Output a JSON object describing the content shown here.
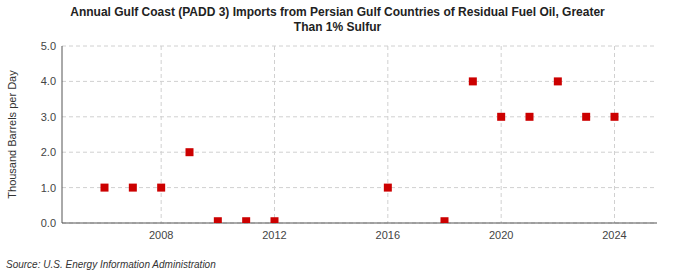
{
  "chart_data": {
    "type": "scatter",
    "title": "Annual Gulf Coast (PADD 3) Imports from Persian Gulf Countries of Residual Fuel Oil, Greater\nThan 1% Sulfur",
    "ylabel": "Thousand Barrels per Day",
    "source": "Source: U.S. Energy Information Administration",
    "x": [
      2006,
      2007,
      2008,
      2009,
      2010,
      2011,
      2012,
      2016,
      2018,
      2019,
      2020,
      2021,
      2022,
      2023,
      2024
    ],
    "values": [
      1.0,
      1.0,
      1.0,
      2.0,
      0.05,
      0.05,
      0.05,
      1.0,
      0.05,
      4.0,
      3.0,
      3.0,
      4.0,
      3.0,
      3.0
    ],
    "color": "#cc0000",
    "marker": "square",
    "xlim": [
      2004.5,
      2025.5
    ],
    "ylim": [
      0.0,
      5.0
    ],
    "xticks": [
      2008,
      2012,
      2016,
      2020,
      2024
    ],
    "yticks": [
      {
        "value": 0,
        "label": "0.0"
      },
      {
        "value": 1,
        "label": "1.0"
      },
      {
        "value": 2,
        "label": "2.0"
      },
      {
        "value": 3,
        "label": "3.0"
      },
      {
        "value": 4,
        "label": "4.0"
      },
      {
        "value": 5,
        "label": "5.0"
      }
    ],
    "grid": true
  }
}
